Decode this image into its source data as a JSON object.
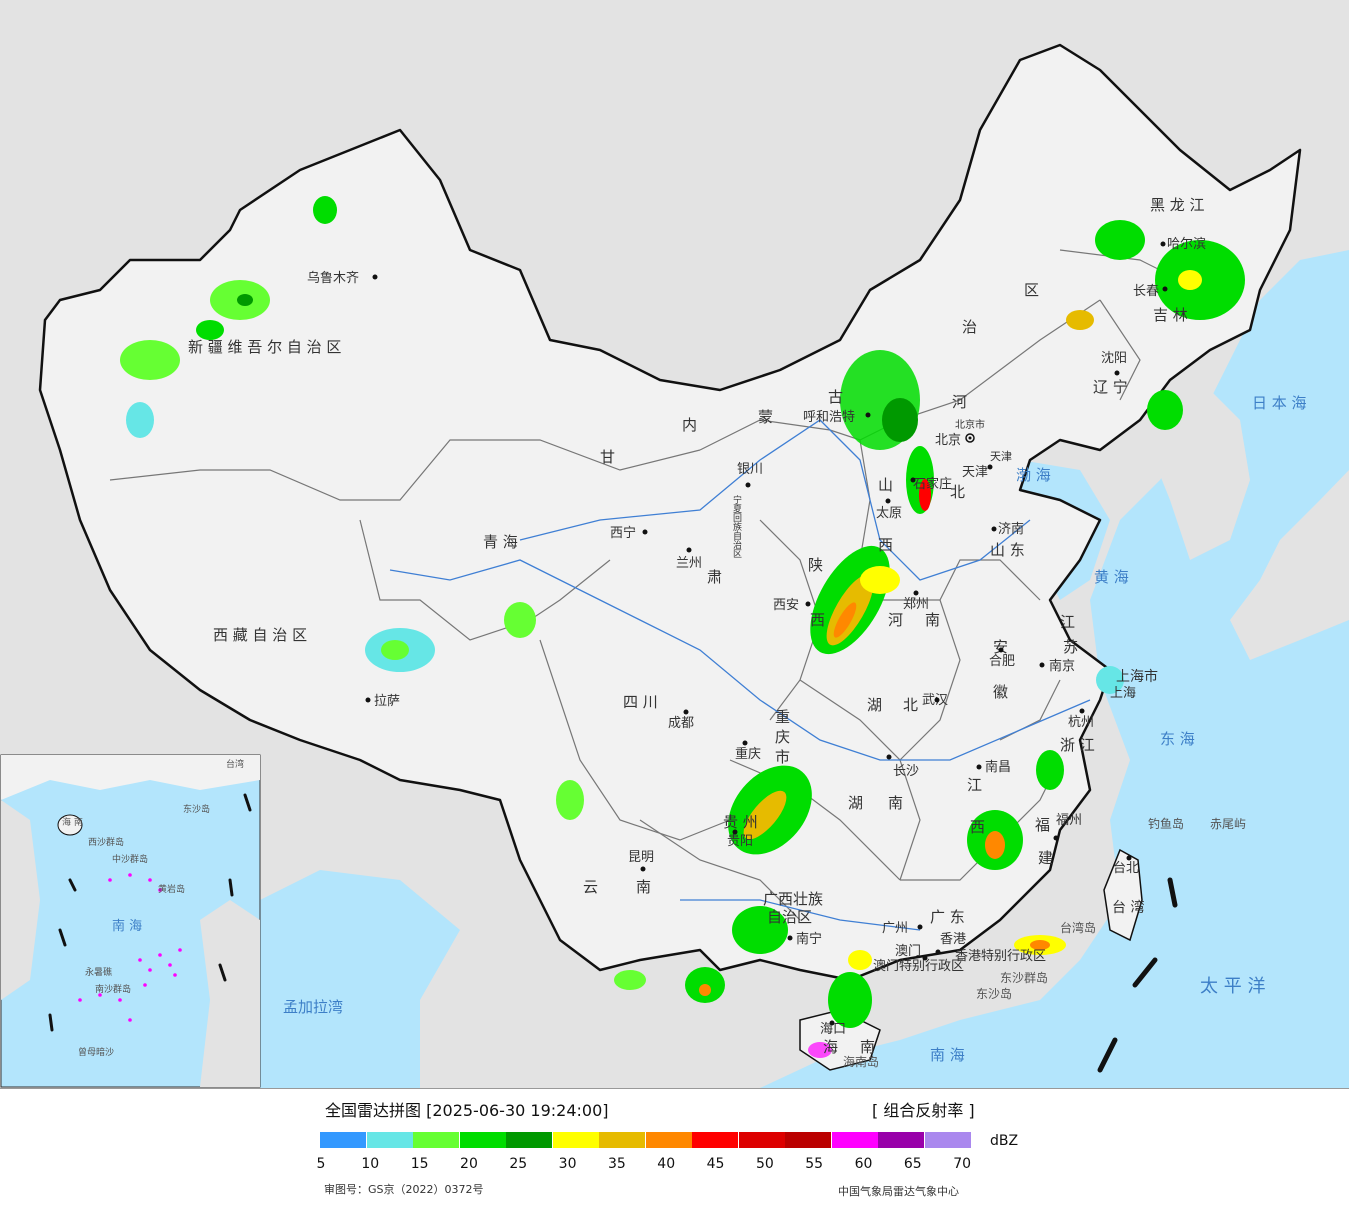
{
  "map": {
    "regions": [
      {
        "text": "新 疆 维 吾 尔 自 治 区"
      },
      {
        "text": "西 藏 自 治 区"
      },
      {
        "text": "青 海"
      },
      {
        "text": "甘"
      },
      {
        "text": "肃"
      },
      {
        "text": "内"
      },
      {
        "text": "蒙"
      },
      {
        "text": "古"
      },
      {
        "text": "区"
      },
      {
        "text": "治"
      },
      {
        "text": "四 川"
      },
      {
        "text": "云"
      },
      {
        "text": "南"
      },
      {
        "text": "黑 龙 江"
      },
      {
        "text": "吉 林"
      },
      {
        "text": "辽 宁"
      },
      {
        "text": "河"
      },
      {
        "text": "北"
      },
      {
        "text": "山"
      },
      {
        "text": "西"
      },
      {
        "text": "山 东"
      },
      {
        "text": "河"
      },
      {
        "text": "南"
      },
      {
        "text": "陕"
      },
      {
        "text": "西"
      },
      {
        "text": "湖"
      },
      {
        "text": "北"
      },
      {
        "text": "湖"
      },
      {
        "text": "南"
      },
      {
        "text": "安"
      },
      {
        "text": "徽"
      },
      {
        "text": "江"
      },
      {
        "text": "苏"
      },
      {
        "text": "浙 江"
      },
      {
        "text": "江"
      },
      {
        "text": "西"
      },
      {
        "text": "福"
      },
      {
        "text": "建"
      },
      {
        "text": "广 东"
      },
      {
        "text": "广西壮族"
      },
      {
        "text": "自治区"
      },
      {
        "text": "贵 州"
      },
      {
        "text": "重"
      },
      {
        "text": "庆"
      },
      {
        "text": "市"
      },
      {
        "text": "海"
      },
      {
        "text": "南"
      },
      {
        "text": "宁夏回族自治区"
      },
      {
        "text": "上海市"
      },
      {
        "text": "天津"
      },
      {
        "text": "北京市"
      },
      {
        "text": "香港特别行政区"
      },
      {
        "text": "澳门特别行政区"
      },
      {
        "text": "台 湾"
      }
    ],
    "cities": [
      {
        "name": "乌鲁木齐"
      },
      {
        "name": "拉萨"
      },
      {
        "name": "西宁"
      },
      {
        "name": "兰州"
      },
      {
        "name": "银川"
      },
      {
        "name": "呼和浩特"
      },
      {
        "name": "北京"
      },
      {
        "name": "天津"
      },
      {
        "name": "石家庄"
      },
      {
        "name": "太原"
      },
      {
        "name": "济南"
      },
      {
        "name": "郑州"
      },
      {
        "name": "西安"
      },
      {
        "name": "成都"
      },
      {
        "name": "重庆"
      },
      {
        "name": "武汉"
      },
      {
        "name": "合肥"
      },
      {
        "name": "南京"
      },
      {
        "name": "上海"
      },
      {
        "name": "杭州"
      },
      {
        "name": "长沙"
      },
      {
        "name": "南昌"
      },
      {
        "name": "福州"
      },
      {
        "name": "台北"
      },
      {
        "name": "贵阳"
      },
      {
        "name": "昆明"
      },
      {
        "name": "南宁"
      },
      {
        "name": "广州"
      },
      {
        "name": "香港"
      },
      {
        "name": "澳门"
      },
      {
        "name": "海口"
      },
      {
        "name": "沈阳"
      },
      {
        "name": "长春"
      },
      {
        "name": "哈尔滨"
      }
    ],
    "seas": [
      {
        "text": "渤 海"
      },
      {
        "text": "黄 海"
      },
      {
        "text": "东 海"
      },
      {
        "text": "南 海"
      },
      {
        "text": "日 本 海"
      },
      {
        "text": "太 平 洋"
      },
      {
        "text": "孟加拉湾"
      }
    ],
    "islands": [
      {
        "text": "钓鱼岛"
      },
      {
        "text": "赤尾屿"
      },
      {
        "text": "台湾岛"
      },
      {
        "text": "东沙群岛"
      },
      {
        "text": "东沙岛"
      },
      {
        "text": "海南岛"
      }
    ],
    "inset_labels": [
      {
        "text": "南 海"
      },
      {
        "text": "中沙群岛"
      },
      {
        "text": "南沙群岛"
      },
      {
        "text": "永暑礁"
      },
      {
        "text": "黄岩岛"
      },
      {
        "text": "曾母暗沙"
      },
      {
        "text": "海 南"
      },
      {
        "text": "西沙群岛"
      },
      {
        "text": "东沙岛"
      },
      {
        "text": "台湾"
      }
    ],
    "colors": {
      "sea": "#b3e5fc",
      "land": "#f2f2f2",
      "outside": "#e3e3e3",
      "border": "#111111",
      "province_border": "#777777",
      "river": "#3f7fd4"
    }
  },
  "legend": {
    "title": "全国雷达拼图 [2025-06-30 19:24:00]",
    "product": "[ 组合反射率 ]",
    "unit": "dBZ",
    "ticks": [
      "5",
      "10",
      "15",
      "20",
      "25",
      "30",
      "35",
      "40",
      "45",
      "50",
      "55",
      "60",
      "65",
      "70"
    ],
    "colors": [
      "#3399ff",
      "#66e6e6",
      "#66ff33",
      "#00dd00",
      "#009900",
      "#ffff00",
      "#e6bb00",
      "#ff8800",
      "#ff0000",
      "#dd0000",
      "#bb0000",
      "#ff00ff",
      "#9900aa",
      "#aa88ee"
    ],
    "review_number": "审图号：GS京（2022）0372号",
    "agency": "中国气象局雷达气象中心"
  }
}
